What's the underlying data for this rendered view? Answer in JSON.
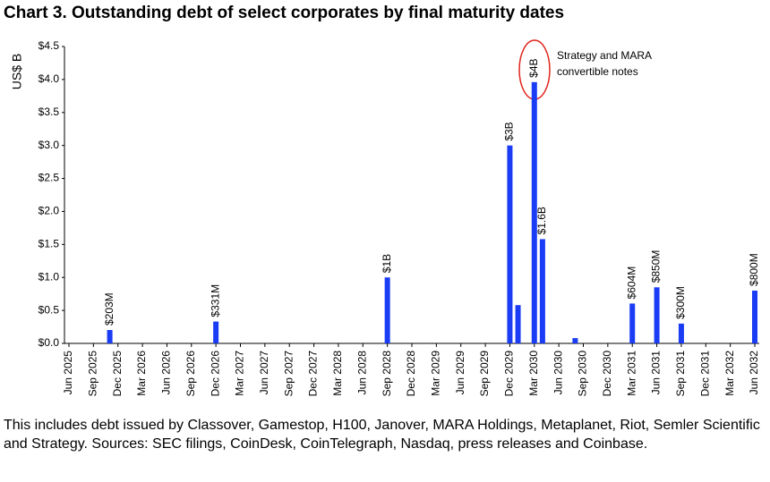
{
  "chart_data": {
    "type": "bar",
    "title": "Chart 3. Outstanding debt of select corporates by final maturity dates",
    "y_label": "US$ B",
    "annotation_lines": [
      "Strategy and MARA",
      "convertible notes"
    ],
    "note": "This includes debt issued by Classover, Gamestop, H100, Janover, MARA Holdings, Metaplanet, Riot, Semler Scientific and Strategy. Sources: SEC filings, CoinDesk, CoinTelegraph, Nasdaq, press releases and Coinbase.",
    "color": "#1a3cf5",
    "ylim": [
      0,
      4.5
    ],
    "yticks": [
      {
        "value": 0,
        "label": "$0.0"
      },
      {
        "value": 0.5,
        "label": "$0.5"
      },
      {
        "value": 1,
        "label": "$1.0"
      },
      {
        "value": 1.5,
        "label": "$1.5"
      },
      {
        "value": 2,
        "label": "$2.0"
      },
      {
        "value": 2.5,
        "label": "$2.5"
      },
      {
        "value": 3,
        "label": "$3.0"
      },
      {
        "value": 3.5,
        "label": "$3.5"
      },
      {
        "value": 4,
        "label": "$4.0"
      },
      {
        "value": 4.5,
        "label": "$4.5"
      }
    ],
    "categories": [
      "Jun 2025",
      null,
      null,
      "Sep 2025",
      null,
      null,
      "Dec 2025",
      null,
      null,
      "Mar 2026",
      null,
      null,
      "Jun 2026",
      null,
      null,
      "Sep 2026",
      null,
      null,
      "Dec 2026",
      null,
      null,
      "Mar 2027",
      null,
      null,
      "Jun 2027",
      null,
      null,
      "Sep 2027",
      null,
      null,
      "Dec 2027",
      null,
      null,
      "Mar 2028",
      null,
      null,
      "Jun 2028",
      null,
      null,
      "Sep 2028",
      null,
      null,
      "Dec 2028",
      null,
      null,
      "Mar 2029",
      null,
      null,
      "Jun 2029",
      null,
      null,
      "Sep 2029",
      null,
      null,
      "Dec 2029",
      null,
      null,
      "Mar 2030",
      null,
      null,
      "Jun 2030",
      null,
      null,
      "Sep 2030",
      null,
      null,
      "Dec 2030",
      null,
      null,
      "Mar 2031",
      null,
      null,
      "Jun 2031",
      null,
      null,
      "Sep 2031",
      null,
      null,
      "Dec 2031",
      null,
      null,
      "Mar 2032",
      null,
      null,
      "Jun 2032"
    ],
    "values": [
      0,
      0,
      0,
      0,
      0,
      0.203,
      0,
      0,
      0,
      0,
      0,
      0,
      0,
      0,
      0,
      0,
      0,
      0,
      0.331,
      0,
      0,
      0,
      0,
      0,
      0,
      0,
      0,
      0,
      0,
      0,
      0,
      0,
      0,
      0,
      0,
      0,
      0,
      0,
      0,
      1.0,
      0,
      0,
      0,
      0,
      0,
      0,
      0,
      0,
      0,
      0,
      0,
      0,
      0,
      0,
      3.0,
      0.58,
      0,
      3.96,
      1.58,
      0,
      0,
      0,
      0.08,
      0,
      0,
      0,
      0,
      0,
      0,
      0.604,
      0,
      0,
      0.85,
      0,
      0,
      0.3,
      0,
      0,
      0,
      0,
      0,
      0,
      0,
      0,
      0.8
    ],
    "value_labels": [
      null,
      null,
      null,
      null,
      null,
      "$203M",
      null,
      null,
      null,
      null,
      null,
      null,
      null,
      null,
      null,
      null,
      null,
      null,
      "$331M",
      null,
      null,
      null,
      null,
      null,
      null,
      null,
      null,
      null,
      null,
      null,
      null,
      null,
      null,
      null,
      null,
      null,
      null,
      null,
      null,
      "$1B",
      null,
      null,
      null,
      null,
      null,
      null,
      null,
      null,
      null,
      null,
      null,
      null,
      null,
      null,
      "$3B",
      null,
      null,
      "$4B",
      "$1.6B",
      null,
      null,
      null,
      null,
      null,
      null,
      null,
      null,
      null,
      null,
      "$604M",
      null,
      null,
      "$850M",
      null,
      null,
      "$300M",
      null,
      null,
      null,
      null,
      null,
      null,
      null,
      null,
      "$800M"
    ]
  }
}
